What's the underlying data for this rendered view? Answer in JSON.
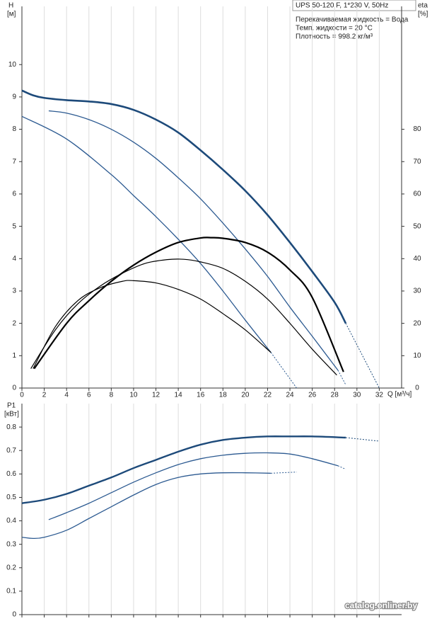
{
  "header": {
    "model": "UPS 50-120 F, 1*230 V, 50Hz",
    "notes": [
      "Перекачиваемая жидкость = Вода",
      "Темп. жидкости = 20 °C",
      "Плотность = 998.2 кг/м³"
    ]
  },
  "watermark": "catalog.onliner.by",
  "chart_data": [
    {
      "type": "line",
      "ylabel": "H",
      "yunit": "[м]",
      "y2label": "eta",
      "y2unit": "[%]",
      "xlabel": "Q [м³/ч]",
      "xlim": [
        0,
        34
      ],
      "xticks": [
        0,
        2,
        4,
        6,
        8,
        10,
        12,
        14,
        16,
        18,
        20,
        22,
        24,
        26,
        28,
        30,
        32
      ],
      "xtick_labels": true,
      "ylim": [
        0,
        11.8
      ],
      "yticks": [
        0,
        1,
        2,
        3,
        4,
        5,
        6,
        7,
        8,
        9,
        10
      ],
      "y2lim": [
        0,
        118
      ],
      "y2ticks": [
        0,
        10,
        20,
        30,
        40,
        50,
        60,
        70,
        80
      ],
      "grid": true,
      "series": [
        {
          "color": "#1d4a7a",
          "width": 2.6,
          "x": [
            0,
            1,
            2,
            4,
            6,
            8,
            10,
            12,
            14,
            16,
            18,
            20,
            22,
            24,
            26,
            28,
            29
          ],
          "values": [
            9.2,
            9.05,
            8.97,
            8.9,
            8.86,
            8.78,
            8.6,
            8.3,
            7.9,
            7.35,
            6.75,
            6.1,
            5.35,
            4.5,
            3.6,
            2.65,
            2.0
          ]
        },
        {
          "color": "#1d4a7a",
          "width": 1,
          "dashed": true,
          "x": [
            29,
            30.5,
            32
          ],
          "values": [
            2.0,
            1.0,
            0
          ]
        },
        {
          "color": "#2c5a91",
          "width": 1.3,
          "x": [
            2.4,
            4,
            6,
            8,
            10,
            12,
            14,
            16,
            18,
            20,
            22,
            24,
            26,
            28.3
          ],
          "values": [
            8.57,
            8.5,
            8.3,
            8.0,
            7.6,
            7.1,
            6.5,
            5.85,
            5.1,
            4.3,
            3.45,
            2.5,
            1.6,
            0.55
          ]
        },
        {
          "color": "#2c5a91",
          "width": 1,
          "dashed": true,
          "x": [
            28.3,
            29
          ],
          "values": [
            0.55,
            0.1
          ]
        },
        {
          "color": "#2c5a91",
          "width": 1.3,
          "x": [
            0,
            4,
            8,
            10,
            12,
            14,
            16,
            18,
            20,
            22.3
          ],
          "values": [
            8.4,
            7.7,
            6.6,
            5.95,
            5.3,
            4.6,
            3.85,
            3.0,
            2.1,
            1.1
          ]
        },
        {
          "color": "#2c5a91",
          "width": 1,
          "dashed": true,
          "x": [
            22.3,
            24.6
          ],
          "values": [
            1.1,
            0
          ]
        },
        {
          "color": "#000000",
          "width": 2.2,
          "axis": "y2",
          "x": [
            1.1,
            4,
            6,
            8,
            10,
            12,
            14,
            16,
            17,
            18,
            20,
            22,
            24,
            26,
            28.8
          ],
          "values": [
            6,
            20,
            27,
            33,
            38,
            42,
            45,
            46.4,
            46.5,
            46.3,
            45,
            42,
            36.5,
            28,
            5
          ]
        },
        {
          "color": "#000000",
          "width": 1.2,
          "axis": "y2",
          "x": [
            0.8,
            3,
            5,
            7,
            9,
            11,
            13,
            14.5,
            16,
            18,
            20,
            22,
            24,
            26,
            28.2
          ],
          "values": [
            6,
            18,
            26,
            31.5,
            35.5,
            38.5,
            39.7,
            39.8,
            39,
            37,
            33,
            27.5,
            20,
            12,
            4
          ]
        },
        {
          "color": "#000000",
          "width": 1.2,
          "axis": "y2",
          "x": [
            1,
            3,
            5,
            7,
            9,
            10,
            12,
            14,
            16,
            18,
            20,
            22.3
          ],
          "values": [
            6,
            19,
            27,
            31,
            33,
            33.2,
            32.5,
            30.5,
            27.5,
            23,
            18,
            11
          ]
        }
      ]
    },
    {
      "type": "line",
      "ylabel": "P1",
      "yunit": "[кВт]",
      "xlim": [
        0,
        34
      ],
      "xticks": [
        0,
        2,
        4,
        6,
        8,
        10,
        12,
        14,
        16,
        18,
        20,
        22,
        24,
        26,
        28,
        30,
        32
      ],
      "xtick_labels": false,
      "ylim": [
        0,
        0.9
      ],
      "yticks": [
        0,
        0.1,
        0.2,
        0.3,
        0.4,
        0.5,
        0.6,
        0.7,
        0.8
      ],
      "grid": true,
      "series": [
        {
          "color": "#1d4a7a",
          "width": 2.4,
          "x": [
            0,
            2,
            4,
            6,
            8,
            10,
            12,
            14,
            16,
            18,
            20,
            22,
            24,
            26,
            29
          ],
          "values": [
            0.475,
            0.49,
            0.515,
            0.55,
            0.585,
            0.625,
            0.66,
            0.695,
            0.725,
            0.745,
            0.755,
            0.76,
            0.76,
            0.76,
            0.755
          ]
        },
        {
          "color": "#1d4a7a",
          "width": 1,
          "dashed": true,
          "x": [
            29,
            32
          ],
          "values": [
            0.755,
            0.74
          ]
        },
        {
          "color": "#2c5a91",
          "width": 1.3,
          "x": [
            2.4,
            4,
            6,
            8,
            10,
            12,
            14,
            16,
            18,
            20,
            22,
            24,
            26,
            28.3
          ],
          "values": [
            0.405,
            0.435,
            0.475,
            0.52,
            0.565,
            0.605,
            0.64,
            0.665,
            0.68,
            0.688,
            0.69,
            0.685,
            0.665,
            0.635
          ]
        },
        {
          "color": "#2c5a91",
          "width": 1,
          "dashed": true,
          "x": [
            28.3,
            29
          ],
          "values": [
            0.635,
            0.62
          ]
        },
        {
          "color": "#2c5a91",
          "width": 1.3,
          "x": [
            0,
            1,
            2,
            4,
            6,
            8,
            10,
            12,
            14,
            16,
            18,
            20,
            22.3
          ],
          "values": [
            0.33,
            0.325,
            0.33,
            0.36,
            0.41,
            0.46,
            0.51,
            0.555,
            0.585,
            0.6,
            0.605,
            0.605,
            0.603
          ]
        },
        {
          "color": "#2c5a91",
          "width": 1,
          "dashed": true,
          "x": [
            22.3,
            24.6
          ],
          "values": [
            0.603,
            0.608
          ]
        }
      ]
    }
  ]
}
